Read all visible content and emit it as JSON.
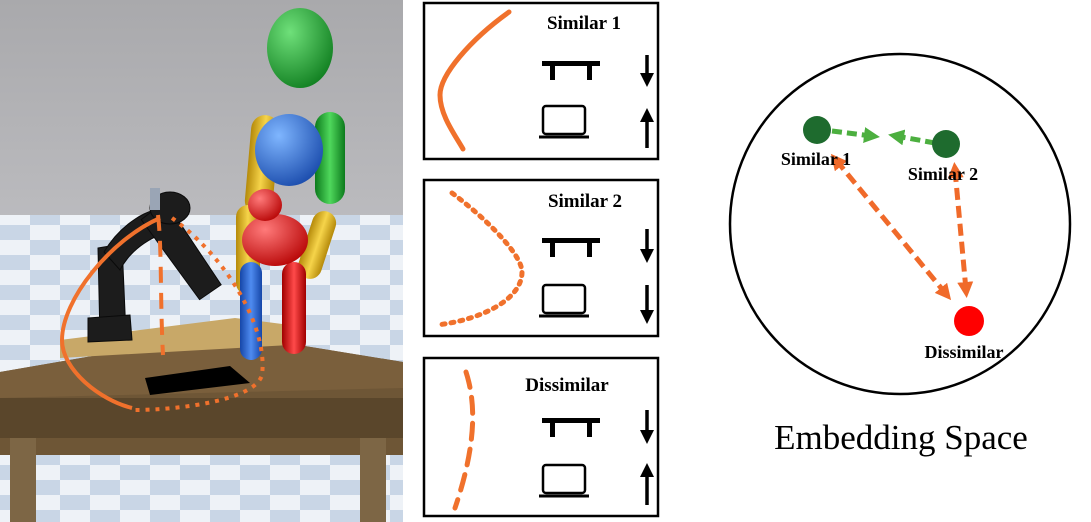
{
  "panels": [
    {
      "label": "Similar 1",
      "curve": "solid",
      "table_arrow": "down",
      "laptop_arrow": "up"
    },
    {
      "label": "Similar 2",
      "curve": "dotted",
      "table_arrow": "down",
      "laptop_arrow": "down"
    },
    {
      "label": "Dissimilar",
      "curve": "dashed",
      "table_arrow": "down",
      "laptop_arrow": "up"
    }
  ],
  "embedding": {
    "title": "Embedding Space",
    "nodes": [
      {
        "label": "Similar 1",
        "color": "#1e6b2e"
      },
      {
        "label": "Similar 2",
        "color": "#1e6b2e"
      },
      {
        "label": "Dissimilar",
        "color": "#ff0000"
      }
    ],
    "attract_color": "#4caf3f",
    "repel_color": "#f06a2a"
  },
  "colors": {
    "trajectory": "#f0712c",
    "human_head": "#17a32a",
    "human_torso": "#2a6fd6",
    "human_arm_yellow": "#e6b81e",
    "human_pelvis": "#e01818",
    "table_top": "#7a5f3c",
    "robot": "#1c1c1c"
  }
}
